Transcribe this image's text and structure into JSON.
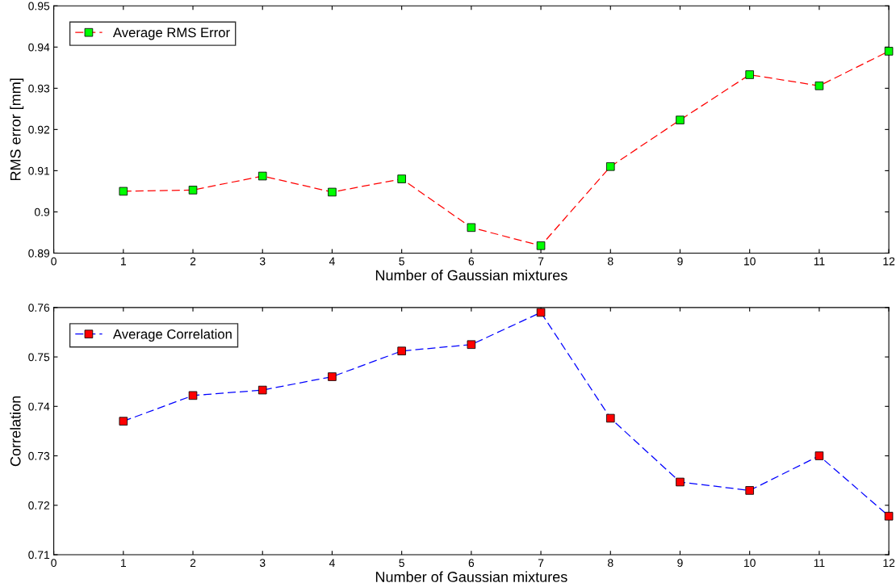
{
  "chart_data": [
    {
      "type": "line",
      "xlabel": "Number of Gaussian mixtures",
      "ylabel": "RMS error [mm]",
      "x": [
        1,
        2,
        3,
        4,
        5,
        6,
        7,
        8,
        9,
        10,
        11,
        12
      ],
      "xlim": [
        0,
        12
      ],
      "xticks": [
        0,
        1,
        2,
        3,
        4,
        5,
        6,
        7,
        8,
        9,
        10,
        11,
        12
      ],
      "ylim": [
        0.89,
        0.95
      ],
      "yticks": [
        0.89,
        {
          "value": 0.9,
          "label": "0.9"
        },
        0.91,
        0.92,
        0.93,
        0.94,
        0.95
      ],
      "grid": false,
      "legend": "top left",
      "marker": "square",
      "line_style": "dashed",
      "series": [
        {
          "name": "Average RMS Error",
          "color": "#ff0000",
          "colors": [
            "#00ff00",
            "#00ff00",
            "#00ff00",
            "#00ff00",
            "#00ff00",
            "#00ff00",
            "#00ff00",
            "#00ff00",
            "#00ff00",
            "#00ff00",
            "#00ff00",
            "#00ff00"
          ],
          "values": [
            0.905,
            0.9053,
            0.9087,
            0.9048,
            0.908,
            0.8962,
            0.8918,
            0.911,
            0.9223,
            0.9333,
            0.9306,
            0.939
          ]
        }
      ]
    },
    {
      "type": "line",
      "xlabel": "Number of Gaussian mixtures",
      "ylabel": "Correlation",
      "x": [
        1,
        2,
        3,
        4,
        5,
        6,
        7,
        8,
        9,
        10,
        11,
        12
      ],
      "xlim": [
        0,
        12
      ],
      "xticks": [
        0,
        1,
        2,
        3,
        4,
        5,
        6,
        7,
        8,
        9,
        10,
        11,
        12
      ],
      "ylim": [
        0.71,
        0.76
      ],
      "yticks": [
        0.71,
        0.72,
        0.73,
        0.74,
        0.75,
        0.76
      ],
      "grid": false,
      "legend": "top left",
      "marker": "square",
      "line_style": "dashed",
      "series": [
        {
          "name": "Average Correlation",
          "color": "#0000ff",
          "colors": [
            "#ff0000",
            "#ff0000",
            "#ff0000",
            "#ff0000",
            "#ff0000",
            "#ff0000",
            "#ff0000",
            "#ff0000",
            "#ff0000",
            "#ff0000",
            "#ff0000",
            "#ff0000"
          ],
          "values": [
            0.737,
            0.7422,
            0.7433,
            0.746,
            0.7512,
            0.7525,
            0.759,
            0.7376,
            0.7247,
            0.723,
            0.73,
            0.7178
          ]
        }
      ]
    }
  ]
}
